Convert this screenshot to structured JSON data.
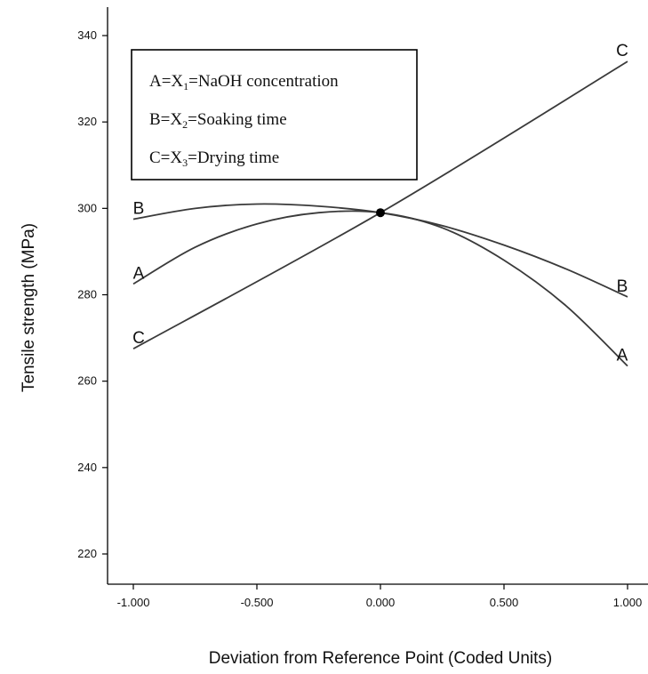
{
  "chart_data": {
    "type": "line",
    "title": "",
    "xlabel": "Deviation from Reference Point (Coded Units)",
    "ylabel": "Tensile strength (MPa)",
    "xlim": [
      -1.0,
      1.0
    ],
    "ylim": [
      210,
      345
    ],
    "x_ticks": [
      "-1.000",
      "-0.500",
      "0.000",
      "0.500",
      "1.000"
    ],
    "x_tick_values": [
      -1.0,
      -0.5,
      0.0,
      0.5,
      1.0
    ],
    "y_ticks": [
      "220",
      "240",
      "260",
      "280",
      "300",
      "320",
      "340"
    ],
    "y_tick_values": [
      220,
      240,
      260,
      280,
      300,
      320,
      340
    ],
    "grid": false,
    "legend_placement": "top-left",
    "legend": [
      {
        "pre": "A=X",
        "sub": "1",
        "post": "=NaOH concentration"
      },
      {
        "pre": "B=X",
        "sub": "2",
        "post": "=Soaking time"
      },
      {
        "pre": "C=X",
        "sub": "3",
        "post": "=Drying time"
      }
    ],
    "reference_point": {
      "x": 0.0,
      "y": 299
    },
    "series": [
      {
        "label": "A",
        "x": [
          -1.0,
          -0.75,
          -0.5,
          -0.25,
          0.0,
          0.25,
          0.5,
          0.75,
          1.0
        ],
        "y": [
          282.5,
          291.0,
          296.4,
          299.0,
          299.0,
          295.5,
          288.0,
          277.5,
          263.5
        ]
      },
      {
        "label": "B",
        "x": [
          -1.0,
          -0.75,
          -0.5,
          -0.25,
          0.0,
          0.25,
          0.5,
          0.75,
          1.0
        ],
        "y": [
          297.5,
          300.0,
          301.0,
          300.5,
          299.0,
          296.0,
          291.5,
          286.0,
          279.5
        ]
      },
      {
        "label": "C",
        "x": [
          -1.0,
          0.0,
          1.0
        ],
        "y": [
          267.5,
          299.0,
          334.0
        ]
      }
    ]
  }
}
